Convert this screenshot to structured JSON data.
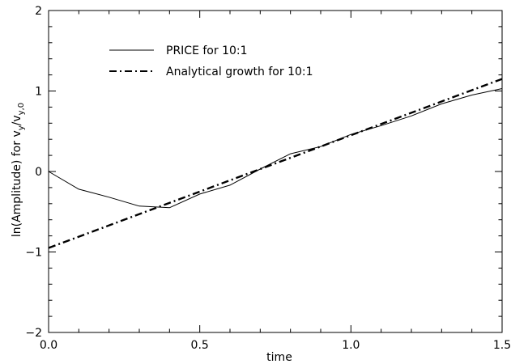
{
  "chart_data": {
    "type": "line",
    "xlabel": "time",
    "ylabel": "ln(Amplitude) for v_y/v_y,0",
    "xlim": [
      0.0,
      1.5
    ],
    "ylim": [
      -2,
      2
    ],
    "x_ticks": [
      "0.0",
      "0.5",
      "1.0",
      "1.5"
    ],
    "y_ticks": [
      "2",
      "1",
      "0",
      "−1",
      "−2"
    ],
    "x_tick_values": [
      0.0,
      0.5,
      1.0,
      1.5
    ],
    "y_tick_values": [
      2,
      1,
      0,
      -1,
      -2
    ],
    "grid": false,
    "legend_position": "top-left",
    "series": [
      {
        "name": "PRICE for 10:1",
        "style": "solid",
        "x": [
          0.0,
          0.1,
          0.2,
          0.3,
          0.4,
          0.5,
          0.6,
          0.7,
          0.8,
          0.9,
          1.0,
          1.1,
          1.2,
          1.3,
          1.4,
          1.5
        ],
        "y": [
          0.0,
          -0.22,
          -0.32,
          -0.43,
          -0.45,
          -0.28,
          -0.17,
          0.03,
          0.22,
          0.31,
          0.46,
          0.57,
          0.69,
          0.84,
          0.95,
          1.03
        ]
      },
      {
        "name": "Analytical growth for 10:1",
        "style": "dash-dot",
        "x": [
          0.0,
          1.5
        ],
        "y": [
          -0.95,
          1.15
        ]
      }
    ]
  }
}
